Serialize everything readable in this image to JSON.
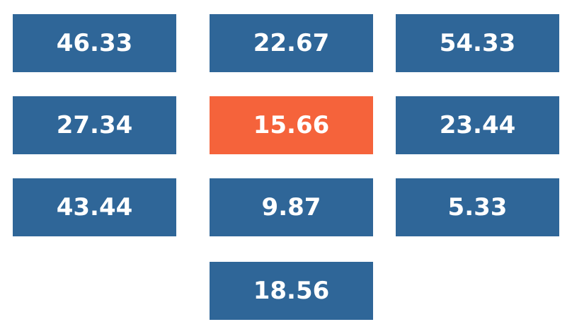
{
  "colors": {
    "tile_default": "#2f6698",
    "tile_selected": "#f5633b",
    "tile_text": "#ffffff"
  },
  "tiles": [
    {
      "value": "46.33",
      "state": "default"
    },
    {
      "value": "22.67",
      "state": "default"
    },
    {
      "value": "54.33",
      "state": "default"
    },
    {
      "value": "27.34",
      "state": "default"
    },
    {
      "value": "15.66",
      "state": "selected"
    },
    {
      "value": "23.44",
      "state": "default"
    },
    {
      "value": "43.44",
      "state": "default"
    },
    {
      "value": "9.87",
      "state": "default"
    },
    {
      "value": "5.33",
      "state": "default"
    },
    {
      "value": "18.56",
      "state": "default"
    }
  ]
}
